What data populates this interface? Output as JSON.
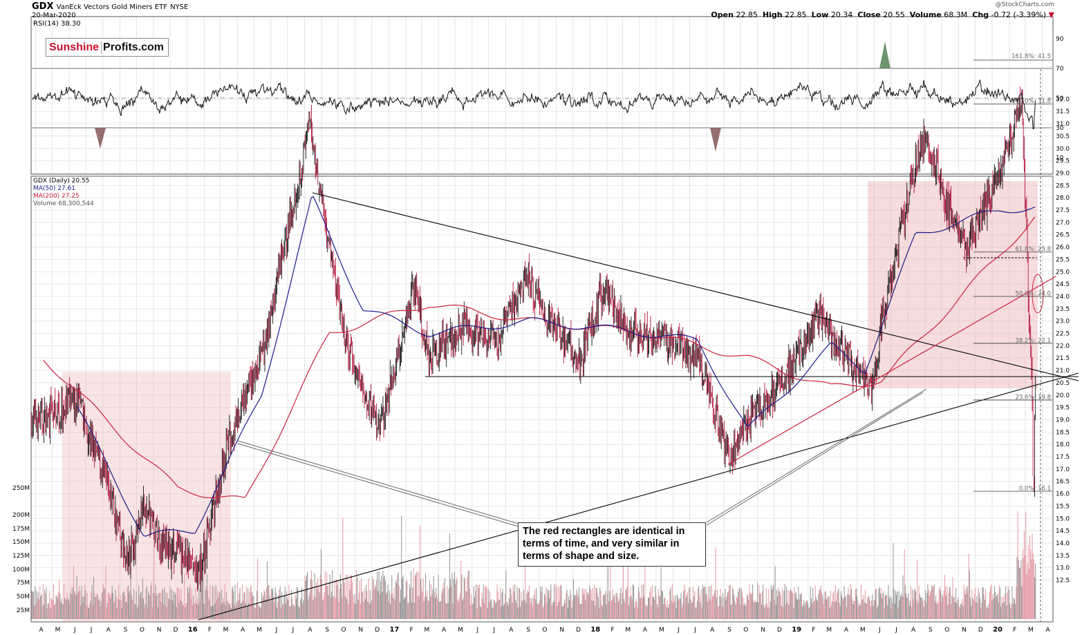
{
  "header": {
    "symbol": "GDX",
    "name": "VanEck Vectors Gold Miners ETF",
    "exchange": "NYSE",
    "date": "20-Mar-2020",
    "open_label": "Open",
    "open": "22.85",
    "high_label": "High",
    "high": "22.85",
    "low_label": "Low",
    "low": "20.34",
    "close_label": "Close",
    "close": "20.55",
    "volume_label": "Volume",
    "volume": "68.3M",
    "chg_label": "Chg",
    "chg": "-0.72 (-3.39%)",
    "watermark": "@StockCharts.com"
  },
  "logo": {
    "part1": "Sunshine",
    "part2": "Profits.com"
  },
  "rsi_panel": {
    "label": "RSI(14) 38.30",
    "ticks": [
      10,
      30,
      50,
      70,
      90
    ],
    "ylim": [
      0,
      100
    ]
  },
  "price_panel": {
    "legend": [
      "GDX (Daily) 20.55",
      "MA(50) 27.61",
      "MA(200) 27.25",
      "Volume 68,300,544"
    ],
    "colors": {
      "ma50": "#1a1a8c",
      "ma200": "#cc1f3c",
      "up": "#111111",
      "down": "#b5123a"
    },
    "ticks": [
      12.5,
      13.0,
      13.5,
      14.0,
      14.5,
      15.0,
      15.5,
      16.0,
      16.5,
      17.0,
      17.5,
      18.0,
      18.5,
      19.0,
      19.5,
      20.0,
      20.5,
      21.0,
      21.5,
      22.0,
      22.5,
      23.0,
      23.5,
      24.0,
      24.5,
      25.0,
      25.5,
      26.0,
      26.5,
      27.0,
      27.5,
      28.0,
      28.5,
      29.0,
      29.5,
      30.0,
      30.5,
      31.0,
      31.5,
      32.0
    ]
  },
  "fib_labels": [
    "100.0%: 31.8",
    "61.8%: 25.8",
    "50.0%: 24.0",
    "38.2%: 22.1",
    "23.6%: 19.8",
    "0.0%: 16.1",
    "161.8%: 41.5"
  ],
  "volume_axis": [
    "25M",
    "50M",
    "75M",
    "100M",
    "125M",
    "150M",
    "175M",
    "200M",
    "250M"
  ],
  "x_axis": [
    "A",
    "M",
    "J",
    "J",
    "A",
    "S",
    "O",
    "N",
    "D",
    "16",
    "F",
    "M",
    "A",
    "M",
    "J",
    "J",
    "A",
    "S",
    "O",
    "N",
    "D",
    "17",
    "F",
    "M",
    "A",
    "M",
    "J",
    "J",
    "A",
    "S",
    "O",
    "N",
    "D",
    "18",
    "F",
    "M",
    "A",
    "M",
    "J",
    "J",
    "A",
    "S",
    "O",
    "N",
    "D",
    "19",
    "F",
    "M",
    "A",
    "M",
    "J",
    "J",
    "A",
    "S",
    "O",
    "N",
    "D",
    "20",
    "F",
    "M",
    "A"
  ],
  "annotation": "The red rectangles are identical in terms of time, and very similar in terms of shape and size.",
  "chart_data": {
    "type": "line",
    "title": "GDX VanEck Vectors Gold Miners ETF",
    "series": [
      {
        "name": "GDX (Daily)",
        "x": [
          "2015-04",
          "2015-06",
          "2015-08",
          "2015-09",
          "2015-10",
          "2015-11",
          "2015-12",
          "2016-01",
          "2016-01-19",
          "2016-03",
          "2016-05",
          "2016-08-11",
          "2016-09",
          "2016-10",
          "2016-12-15",
          "2017-02",
          "2017-03",
          "2017-05",
          "2017-07",
          "2017-09-08",
          "2017-10",
          "2017-12",
          "2018-01-25",
          "2018-03",
          "2018-05",
          "2018-07",
          "2018-09-11",
          "2018-10",
          "2018-12",
          "2019-02-20",
          "2019-04",
          "2019-05-28",
          "2019-06",
          "2019-08",
          "2019-09-04",
          "2019-10",
          "2019-11",
          "2020-01",
          "2020-02-24",
          "2020-03-13",
          "2020-03-16",
          "2020-03-20"
        ],
        "values": [
          19.0,
          19.8,
          16.0,
          13.2,
          15.5,
          14.0,
          13.6,
          13.0,
          12.4,
          18.0,
          21.5,
          31.0,
          26.0,
          22.0,
          18.5,
          24.5,
          21.5,
          22.8,
          22.0,
          24.8,
          23.0,
          21.5,
          24.3,
          22.5,
          22.3,
          21.7,
          17.3,
          19.0,
          20.5,
          23.2,
          21.5,
          20.2,
          23.0,
          29.5,
          30.5,
          27.5,
          26.0,
          29.0,
          31.7,
          20.0,
          16.1,
          20.55
        ]
      },
      {
        "name": "MA(50)",
        "x": [
          "2015-06",
          "2015-10",
          "2016-01",
          "2016-05",
          "2016-08",
          "2016-11",
          "2017-03",
          "2017-09",
          "2018-03",
          "2018-07",
          "2018-10",
          "2019-03",
          "2019-05",
          "2019-08",
          "2020-01",
          "2020-03-20"
        ],
        "values": [
          19.5,
          14.3,
          14.5,
          20.0,
          28.0,
          23.5,
          22.5,
          23.0,
          22.6,
          22.2,
          18.6,
          22.0,
          21.0,
          26.5,
          27.5,
          27.61
        ]
      },
      {
        "name": "MA(200)",
        "x": [
          "2015-04",
          "2015-08",
          "2015-12",
          "2016-04",
          "2016-09",
          "2017-03",
          "2017-09",
          "2018-04",
          "2018-10",
          "2019-03",
          "2019-06",
          "2019-10",
          "2020-03-20"
        ],
        "values": [
          21.5,
          18.8,
          16.2,
          15.7,
          22.5,
          23.7,
          23.0,
          22.5,
          21.5,
          20.3,
          20.6,
          23.5,
          27.25
        ]
      }
    ],
    "ylim": [
      12.0,
      32.0
    ]
  }
}
